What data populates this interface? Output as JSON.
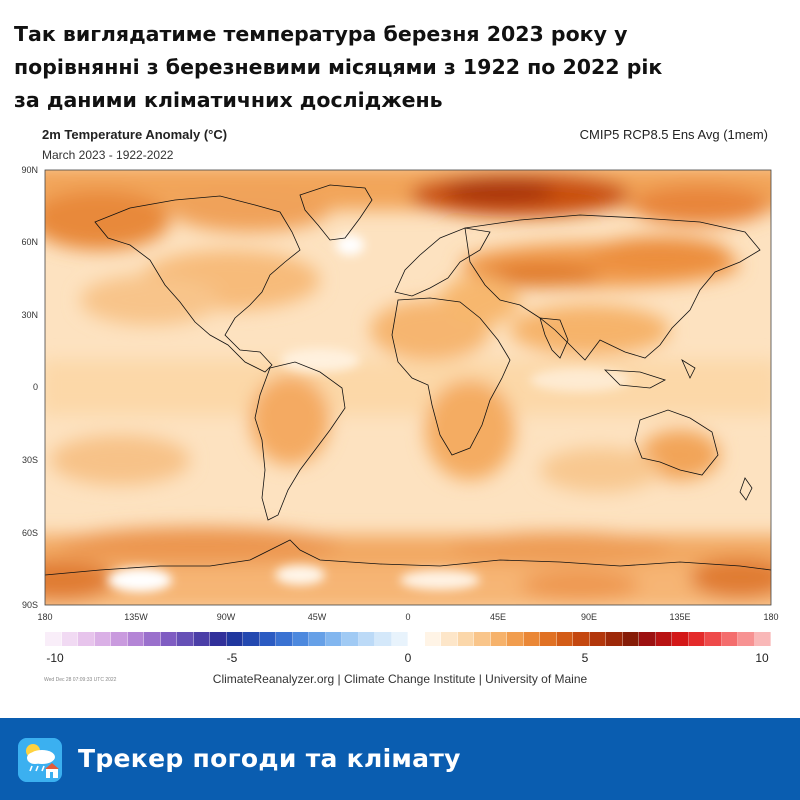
{
  "headline": {
    "line1": "Так виглядатиме температура березня 2023 року у",
    "line2": "порівнянні з березневими місяцями з 1922 по 2022 рік",
    "line3": "за даними кліматичних досліджень"
  },
  "map": {
    "title": "2m Temperature Anomaly (°C)",
    "subtitle": "March 2023 - 1922-2022",
    "model": "CMIP5 RCP8.5 Ens Avg (1mem)",
    "lat_labels": [
      "90N",
      "60N",
      "30N",
      "0",
      "30S",
      "60S",
      "90S"
    ],
    "lon_labels": [
      "180",
      "135W",
      "90W",
      "45W",
      "0",
      "45E",
      "90E",
      "135E",
      "180"
    ],
    "colorbar": {
      "tick_labels": [
        "-10",
        "-5",
        "0",
        "5",
        "10"
      ],
      "colors": [
        "#f9eef9",
        "#f1daf3",
        "#e7c4ec",
        "#dab0e6",
        "#c99ade",
        "#b485d6",
        "#9a70cc",
        "#7f5cc2",
        "#6650b6",
        "#4b3ea7",
        "#31309a",
        "#20379e",
        "#2348b0",
        "#2b5bc2",
        "#3a72d2",
        "#4d89de",
        "#66a0e7",
        "#82b6ef",
        "#a0caf4",
        "#bcdaf7",
        "#d4e8fa",
        "#e8f3fc",
        "#ffffff",
        "#fff4e6",
        "#fde6c9",
        "#fbd7aa",
        "#f9c58a",
        "#f6b26b",
        "#f19d4e",
        "#ea8736",
        "#e07124",
        "#d35c17",
        "#c4470f",
        "#b2360b",
        "#9d2808",
        "#861c07",
        "#9c1010",
        "#b81212",
        "#d31717",
        "#e42a2a",
        "#ee4a4a",
        "#f46d6d",
        "#f79292",
        "#f9b8b8"
      ]
    },
    "credit": "ClimateReanalyzer.org | Climate Change Institute | University of Maine",
    "timestamp": "Wed Dec 28 07:09:33 UTC 2022"
  },
  "footer": {
    "label": "Трекер погоди та клімату",
    "icon": "weather-app-icon"
  }
}
